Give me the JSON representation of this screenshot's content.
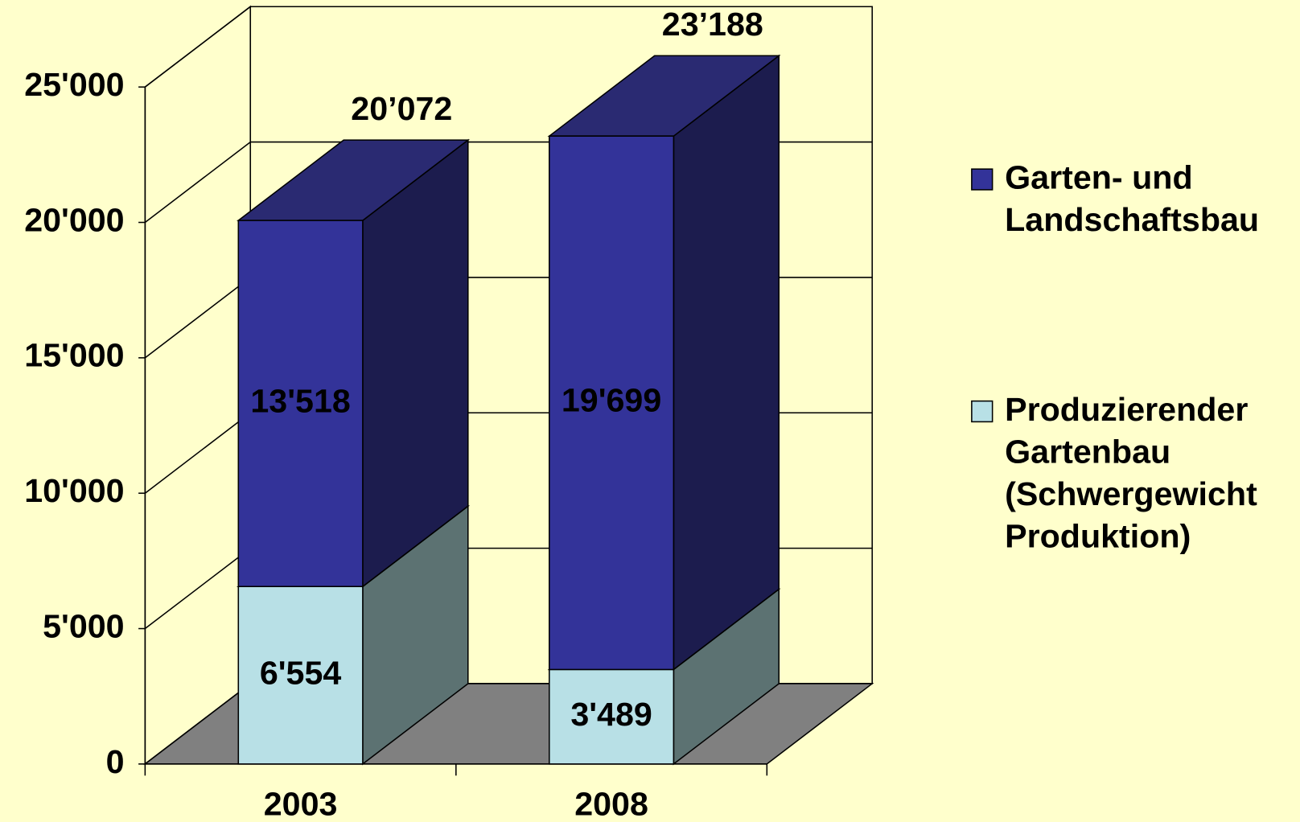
{
  "chart_data": {
    "type": "bar3d_stacked",
    "categories": [
      "2003",
      "2008"
    ],
    "series": [
      {
        "name": "Produzierender Gartenbau (Schwergewicht Produktion)",
        "color": "#b8e0e6",
        "side_color": "#5c7272",
        "label_color": "#000000",
        "values": [
          6554,
          3489
        ],
        "value_labels": [
          "6'554",
          "3'489"
        ]
      },
      {
        "name": "Garten- und Landschaftsbau",
        "color": "#333399",
        "side_color": "#1c1c4e",
        "label_color": "#ffffff",
        "values": [
          13518,
          19699
        ],
        "value_labels": [
          "13'518",
          "19'699"
        ]
      }
    ],
    "total_labels": [
      "20’072",
      "23’188"
    ],
    "ylim": [
      0,
      25000
    ],
    "yticks": [
      0,
      {
        "value": 5000,
        "label": "5'000"
      },
      {
        "value": 10000,
        "label": "10'000"
      },
      {
        "value": 15000,
        "label": "15'000"
      },
      {
        "value": 20000,
        "label": "20'000"
      },
      {
        "value": 25000,
        "label": "25'000"
      }
    ],
    "grid": true,
    "background": "#ffffcc",
    "floor_color": "#808080"
  }
}
